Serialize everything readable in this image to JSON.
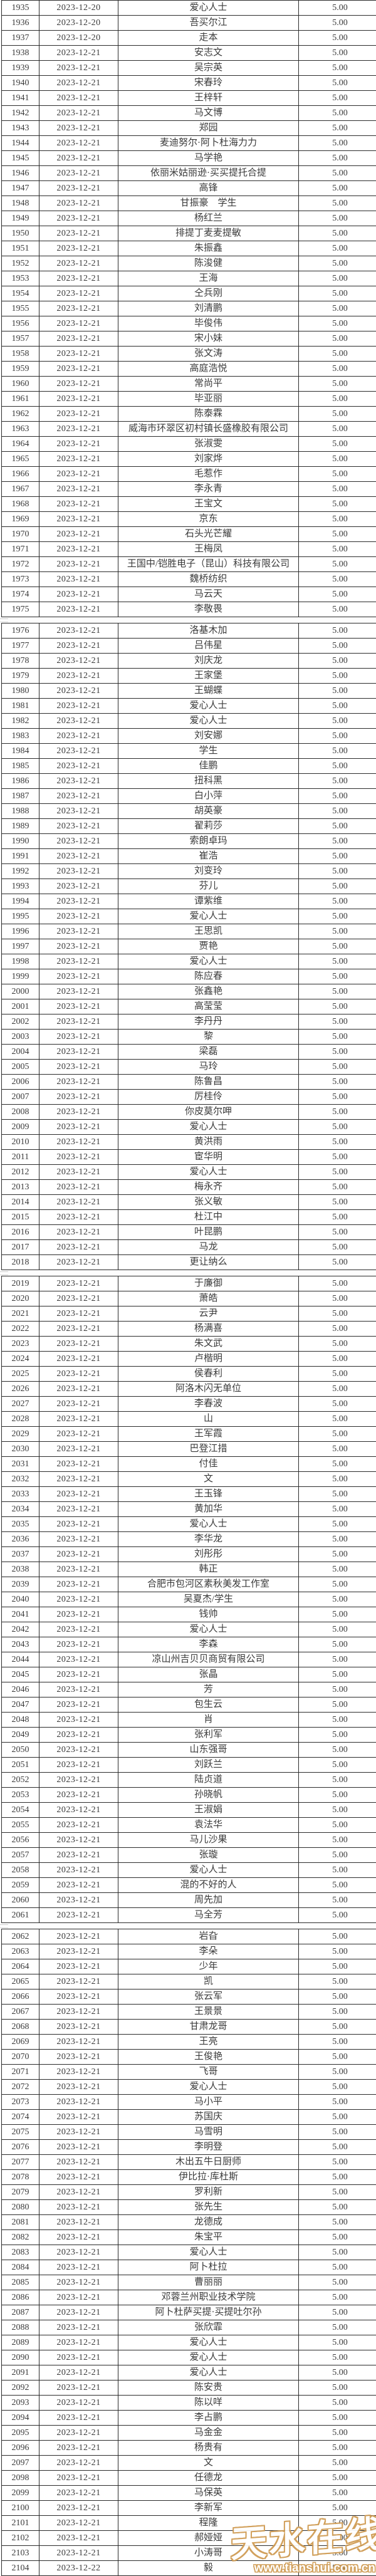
{
  "table": {
    "page_breaks_after": [
      1975,
      2018,
      2061
    ],
    "rows": [
      [
        1935,
        "2023-12-20",
        "爱心人士",
        "5.00"
      ],
      [
        1936,
        "2023-12-20",
        "吾买尔江",
        "5.00"
      ],
      [
        1937,
        "2023-12-20",
        "走本",
        "5.00"
      ],
      [
        1938,
        "2023-12-21",
        "安志文",
        "5.00"
      ],
      [
        1939,
        "2023-12-21",
        "吴宗英",
        "5.00"
      ],
      [
        1940,
        "2023-12-21",
        "宋春玲",
        "5.00"
      ],
      [
        1941,
        "2023-12-21",
        "王梓轩",
        "5.00"
      ],
      [
        1942,
        "2023-12-21",
        "马文博",
        "5.00"
      ],
      [
        1943,
        "2023-12-21",
        "郑园",
        "5.00"
      ],
      [
        1944,
        "2023-12-21",
        "麦迪努尔·阿卜杜海力力",
        "5.00"
      ],
      [
        1945,
        "2023-12-21",
        "马学艳",
        "5.00"
      ],
      [
        1946,
        "2023-12-21",
        "依丽米姑丽逊·买买提托合提",
        "5.00"
      ],
      [
        1947,
        "2023-12-21",
        "高锋",
        "5.00"
      ],
      [
        1948,
        "2023-12-21",
        "甘振豪　学生",
        "5.00"
      ],
      [
        1949,
        "2023-12-21",
        "杨红兰",
        "5.00"
      ],
      [
        1950,
        "2023-12-21",
        "排提丁麦麦提敏",
        "5.00"
      ],
      [
        1951,
        "2023-12-21",
        "朱振鑫",
        "5.00"
      ],
      [
        1952,
        "2023-12-21",
        "陈浚健",
        "5.00"
      ],
      [
        1953,
        "2023-12-21",
        "王海",
        "5.00"
      ],
      [
        1954,
        "2023-12-21",
        "仝兵刚",
        "5.00"
      ],
      [
        1955,
        "2023-12-21",
        "刘清鹏",
        "5.00"
      ],
      [
        1956,
        "2023-12-21",
        "毕俊伟",
        "5.00"
      ],
      [
        1957,
        "2023-12-21",
        "宋小妹",
        "5.00"
      ],
      [
        1958,
        "2023-12-21",
        "张文涛",
        "5.00"
      ],
      [
        1959,
        "2023-12-21",
        "高庭浩悦",
        "5.00"
      ],
      [
        1960,
        "2023-12-21",
        "常尚平",
        "5.00"
      ],
      [
        1961,
        "2023-12-21",
        "毕亚丽",
        "5.00"
      ],
      [
        1962,
        "2023-12-21",
        "陈泰霖",
        "5.00"
      ],
      [
        1963,
        "2023-12-21",
        "威海市环翠区初村镇长盛橡胶有限公司",
        "5.00"
      ],
      [
        1964,
        "2023-12-21",
        "张淑雯",
        "5.00"
      ],
      [
        1965,
        "2023-12-21",
        "刘家烨",
        "5.00"
      ],
      [
        1966,
        "2023-12-21",
        "毛惹作",
        "5.00"
      ],
      [
        1967,
        "2023-12-21",
        "李永青",
        "5.00"
      ],
      [
        1968,
        "2023-12-21",
        "王宝文",
        "5.00"
      ],
      [
        1969,
        "2023-12-21",
        "京东",
        "5.00"
      ],
      [
        1970,
        "2023-12-21",
        "石头光芒耀",
        "5.00"
      ],
      [
        1971,
        "2023-12-21",
        "王梅凤",
        "5.00"
      ],
      [
        1972,
        "2023-12-21",
        "王国中/铠胜电子（昆山）科技有限公司",
        "5.00"
      ],
      [
        1973,
        "2023-12-21",
        "魏桥纺织",
        "5.00"
      ],
      [
        1974,
        "2023-12-21",
        "马云天",
        "5.00"
      ],
      [
        1975,
        "2023-12-21",
        "李敬畏",
        "5.00"
      ],
      [
        1976,
        "2023-12-21",
        "洛基木加",
        "5.00"
      ],
      [
        1977,
        "2023-12-21",
        "吕伟星",
        "5.00"
      ],
      [
        1978,
        "2023-12-21",
        "刘庆龙",
        "5.00"
      ],
      [
        1979,
        "2023-12-21",
        "王家堡",
        "5.00"
      ],
      [
        1980,
        "2023-12-21",
        "王蝴蝶",
        "5.00"
      ],
      [
        1981,
        "2023-12-21",
        "爱心人士",
        "5.00"
      ],
      [
        1982,
        "2023-12-21",
        "爱心人士",
        "5.00"
      ],
      [
        1983,
        "2023-12-21",
        "刘安娜",
        "5.00"
      ],
      [
        1984,
        "2023-12-21",
        "学生",
        "5.00"
      ],
      [
        1985,
        "2023-12-21",
        "佳鹏",
        "5.00"
      ],
      [
        1986,
        "2023-12-21",
        "扭科黑",
        "5.00"
      ],
      [
        1987,
        "2023-12-21",
        "白小萍",
        "5.00"
      ],
      [
        1988,
        "2023-12-21",
        "胡英豪",
        "5.00"
      ],
      [
        1989,
        "2023-12-21",
        "翟莉莎",
        "5.00"
      ],
      [
        1990,
        "2023-12-21",
        "索朗卓玛",
        "5.00"
      ],
      [
        1991,
        "2023-12-21",
        "崔浩",
        "5.00"
      ],
      [
        1992,
        "2023-12-21",
        "刘变玲",
        "5.00"
      ],
      [
        1993,
        "2023-12-21",
        "芬儿",
        "5.00"
      ],
      [
        1994,
        "2023-12-21",
        "谭紫维",
        "5.00"
      ],
      [
        1995,
        "2023-12-21",
        "爱心人士",
        "5.00"
      ],
      [
        1996,
        "2023-12-21",
        "王思凯",
        "5.00"
      ],
      [
        1997,
        "2023-12-21",
        "贾艳",
        "5.00"
      ],
      [
        1998,
        "2023-12-21",
        "爱心人士",
        "5.00"
      ],
      [
        1999,
        "2023-12-21",
        "陈应春",
        "5.00"
      ],
      [
        2000,
        "2023-12-21",
        "张鑫艳",
        "5.00"
      ],
      [
        2001,
        "2023-12-21",
        "高莹莹",
        "5.00"
      ],
      [
        2002,
        "2023-12-21",
        "李丹丹",
        "5.00"
      ],
      [
        2003,
        "2023-12-21",
        "黎",
        "5.00"
      ],
      [
        2004,
        "2023-12-21",
        "梁磊",
        "5.00"
      ],
      [
        2005,
        "2023-12-21",
        "马玲",
        "5.00"
      ],
      [
        2006,
        "2023-12-21",
        "陈鲁昌",
        "5.00"
      ],
      [
        2007,
        "2023-12-21",
        "厉桂伶",
        "5.00"
      ],
      [
        2008,
        "2023-12-21",
        "你皮莫尔呷",
        "5.00"
      ],
      [
        2009,
        "2023-12-21",
        "爱心人士",
        "5.00"
      ],
      [
        2010,
        "2023-12-21",
        "黄洪雨",
        "5.00"
      ],
      [
        2011,
        "2023-12-21",
        "宦华明",
        "5.00"
      ],
      [
        2012,
        "2023-12-21",
        "爱心人士",
        "5.00"
      ],
      [
        2013,
        "2023-12-21",
        "梅永齐",
        "5.00"
      ],
      [
        2014,
        "2023-12-21",
        "张义敏",
        "5.00"
      ],
      [
        2015,
        "2023-12-21",
        "杜江中",
        "5.00"
      ],
      [
        2016,
        "2023-12-21",
        "叶昆鹏",
        "5.00"
      ],
      [
        2017,
        "2023-12-21",
        "马龙",
        "5.00"
      ],
      [
        2018,
        "2023-12-21",
        "更让纳么",
        "5.00"
      ],
      [
        2019,
        "2023-12-21",
        "于廉御",
        "5.00"
      ],
      [
        2020,
        "2023-12-21",
        "萧皓",
        "5.00"
      ],
      [
        2021,
        "2023-12-21",
        "云尹",
        "5.00"
      ],
      [
        2022,
        "2023-12-21",
        "杨满喜",
        "5.00"
      ],
      [
        2023,
        "2023-12-21",
        "朱文武",
        "5.00"
      ],
      [
        2024,
        "2023-12-21",
        "卢楷明",
        "5.00"
      ],
      [
        2025,
        "2023-12-21",
        "侯春利",
        "5.00"
      ],
      [
        2026,
        "2023-12-21",
        "阿洛木闪无单位",
        "5.00"
      ],
      [
        2027,
        "2023-12-21",
        "李春波",
        "5.00"
      ],
      [
        2028,
        "2023-12-21",
        "山",
        "5.00"
      ],
      [
        2029,
        "2023-12-21",
        "王军霞",
        "5.00"
      ],
      [
        2030,
        "2023-12-21",
        "巴登江措",
        "5.00"
      ],
      [
        2031,
        "2023-12-21",
        "付佳",
        "5.00"
      ],
      [
        2032,
        "2023-12-21",
        "文",
        "5.00"
      ],
      [
        2033,
        "2023-12-21",
        "王玉锋",
        "5.00"
      ],
      [
        2034,
        "2023-12-21",
        "黄加华",
        "5.00"
      ],
      [
        2035,
        "2023-12-21",
        "爱心人士",
        "5.00"
      ],
      [
        2036,
        "2023-12-21",
        "李华龙",
        "5.00"
      ],
      [
        2037,
        "2023-12-21",
        "刘彤彤",
        "5.00"
      ],
      [
        2038,
        "2023-12-21",
        "韩正",
        "5.00"
      ],
      [
        2039,
        "2023-12-21",
        "合肥市包河区素秋美发工作室",
        "5.00"
      ],
      [
        2040,
        "2023-12-21",
        "吴夏杰/学生",
        "5.00"
      ],
      [
        2041,
        "2023-12-21",
        "钱帅",
        "5.00"
      ],
      [
        2042,
        "2023-12-21",
        "爱心人士",
        "5.00"
      ],
      [
        2043,
        "2023-12-21",
        "李森",
        "5.00"
      ],
      [
        2044,
        "2023-12-21",
        "凉山州吉贝贝商贸有限公司",
        "5.00"
      ],
      [
        2045,
        "2023-12-21",
        "张晶",
        "5.00"
      ],
      [
        2046,
        "2023-12-21",
        "芳",
        "5.00"
      ],
      [
        2047,
        "2023-12-21",
        "包生云",
        "5.00"
      ],
      [
        2048,
        "2023-12-21",
        "肖",
        "5.00"
      ],
      [
        2049,
        "2023-12-21",
        "张利军",
        "5.00"
      ],
      [
        2050,
        "2023-12-21",
        "山东强哥",
        "5.00"
      ],
      [
        2051,
        "2023-12-21",
        "刘跃兰",
        "5.00"
      ],
      [
        2052,
        "2023-12-21",
        "陆贞道",
        "5.00"
      ],
      [
        2053,
        "2023-12-21",
        "孙晓帆",
        "5.00"
      ],
      [
        2054,
        "2023-12-21",
        "王淑娟",
        "5.00"
      ],
      [
        2055,
        "2023-12-21",
        "袁法华",
        "5.00"
      ],
      [
        2056,
        "2023-12-21",
        "马儿沙果",
        "5.00"
      ],
      [
        2057,
        "2023-12-21",
        "张璇",
        "5.00"
      ],
      [
        2058,
        "2023-12-21",
        "爱心人士",
        "5.00"
      ],
      [
        2059,
        "2023-12-21",
        "混的不好的人",
        "5.00"
      ],
      [
        2060,
        "2023-12-21",
        "周先加",
        "5.00"
      ],
      [
        2061,
        "2023-12-21",
        "马全芳",
        "5.00"
      ],
      [
        2062,
        "2023-12-21",
        "岩旮",
        "5.00"
      ],
      [
        2063,
        "2023-12-21",
        "李朵",
        "5.00"
      ],
      [
        2064,
        "2023-12-21",
        "少年",
        "5.00"
      ],
      [
        2065,
        "2023-12-21",
        "凯",
        "5.00"
      ],
      [
        2066,
        "2023-12-21",
        "张云军",
        "5.00"
      ],
      [
        2067,
        "2023-12-21",
        "王景景",
        "5.00"
      ],
      [
        2068,
        "2023-12-21",
        "甘肃龙哥",
        "5.00"
      ],
      [
        2069,
        "2023-12-21",
        "王亮",
        "5.00"
      ],
      [
        2070,
        "2023-12-21",
        "王俊艳",
        "5.00"
      ],
      [
        2071,
        "2023-12-21",
        "飞哥",
        "5.00"
      ],
      [
        2072,
        "2023-12-21",
        "爱心人士",
        "5.00"
      ],
      [
        2073,
        "2023-12-21",
        "马小平",
        "5.00"
      ],
      [
        2074,
        "2023-12-21",
        "苏国庆",
        "5.00"
      ],
      [
        2075,
        "2023-12-21",
        "马雪明",
        "5.00"
      ],
      [
        2076,
        "2023-12-21",
        "李明登",
        "5.00"
      ],
      [
        2077,
        "2023-12-21",
        "木出五牛日厨师",
        "5.00"
      ],
      [
        2078,
        "2023-12-21",
        "伊比拉·库杜斯",
        "5.00"
      ],
      [
        2079,
        "2023-12-21",
        "罗利新",
        "5.00"
      ],
      [
        2080,
        "2023-12-21",
        "张先生",
        "5.00"
      ],
      [
        2081,
        "2023-12-21",
        "龙德成",
        "5.00"
      ],
      [
        2082,
        "2023-12-21",
        "朱宝平",
        "5.00"
      ],
      [
        2083,
        "2023-12-21",
        "爱心人士",
        "5.00"
      ],
      [
        2084,
        "2023-12-21",
        "阿卜杜拉",
        "5.00"
      ],
      [
        2085,
        "2023-12-21",
        "曹丽丽",
        "5.00"
      ],
      [
        2086,
        "2023-12-21",
        "邓蓉兰州职业技术学院",
        "5.00"
      ],
      [
        2087,
        "2023-12-21",
        "阿卜杜萨买提·买提吐尔孙",
        "5.00"
      ],
      [
        2088,
        "2023-12-21",
        "张欣霏",
        "5.00"
      ],
      [
        2089,
        "2023-12-21",
        "爱心人士",
        "5.00"
      ],
      [
        2090,
        "2023-12-21",
        "爱心人士",
        "5.00"
      ],
      [
        2091,
        "2023-12-21",
        "爱心人士",
        "5.00"
      ],
      [
        2092,
        "2023-12-21",
        "陈安贵",
        "5.00"
      ],
      [
        2093,
        "2023-12-21",
        "陈以咩",
        "5.00"
      ],
      [
        2094,
        "2023-12-21",
        "李占鹏",
        "5.00"
      ],
      [
        2095,
        "2023-12-21",
        "马金金",
        "5.00"
      ],
      [
        2096,
        "2023-12-21",
        "杨贵有",
        "5.00"
      ],
      [
        2097,
        "2023-12-21",
        "文",
        "5.00"
      ],
      [
        2098,
        "2023-12-21",
        "任德龙",
        "5.00"
      ],
      [
        2099,
        "2023-12-21",
        "马保英",
        "5.00"
      ],
      [
        2100,
        "2023-12-21",
        "李新军",
        "5.00"
      ],
      [
        2101,
        "2023-12-21",
        "程隆",
        "5.00"
      ],
      [
        2102,
        "2023-12-21",
        "郝娅娅",
        "5.00"
      ],
      [
        2103,
        "2023-12-21",
        "小涛哥",
        "5.00"
      ],
      [
        2104,
        "2023-12-22",
        "毅",
        "5.00"
      ]
    ]
  },
  "watermark": {
    "brand": "天水在线",
    "url": "www.tianshui.com.cn"
  },
  "colors": {
    "text": "#3a3a3a",
    "border": "#2b2b2b",
    "watermark_outline": "#cf9a50",
    "watermark_fill": "#ffffff"
  }
}
